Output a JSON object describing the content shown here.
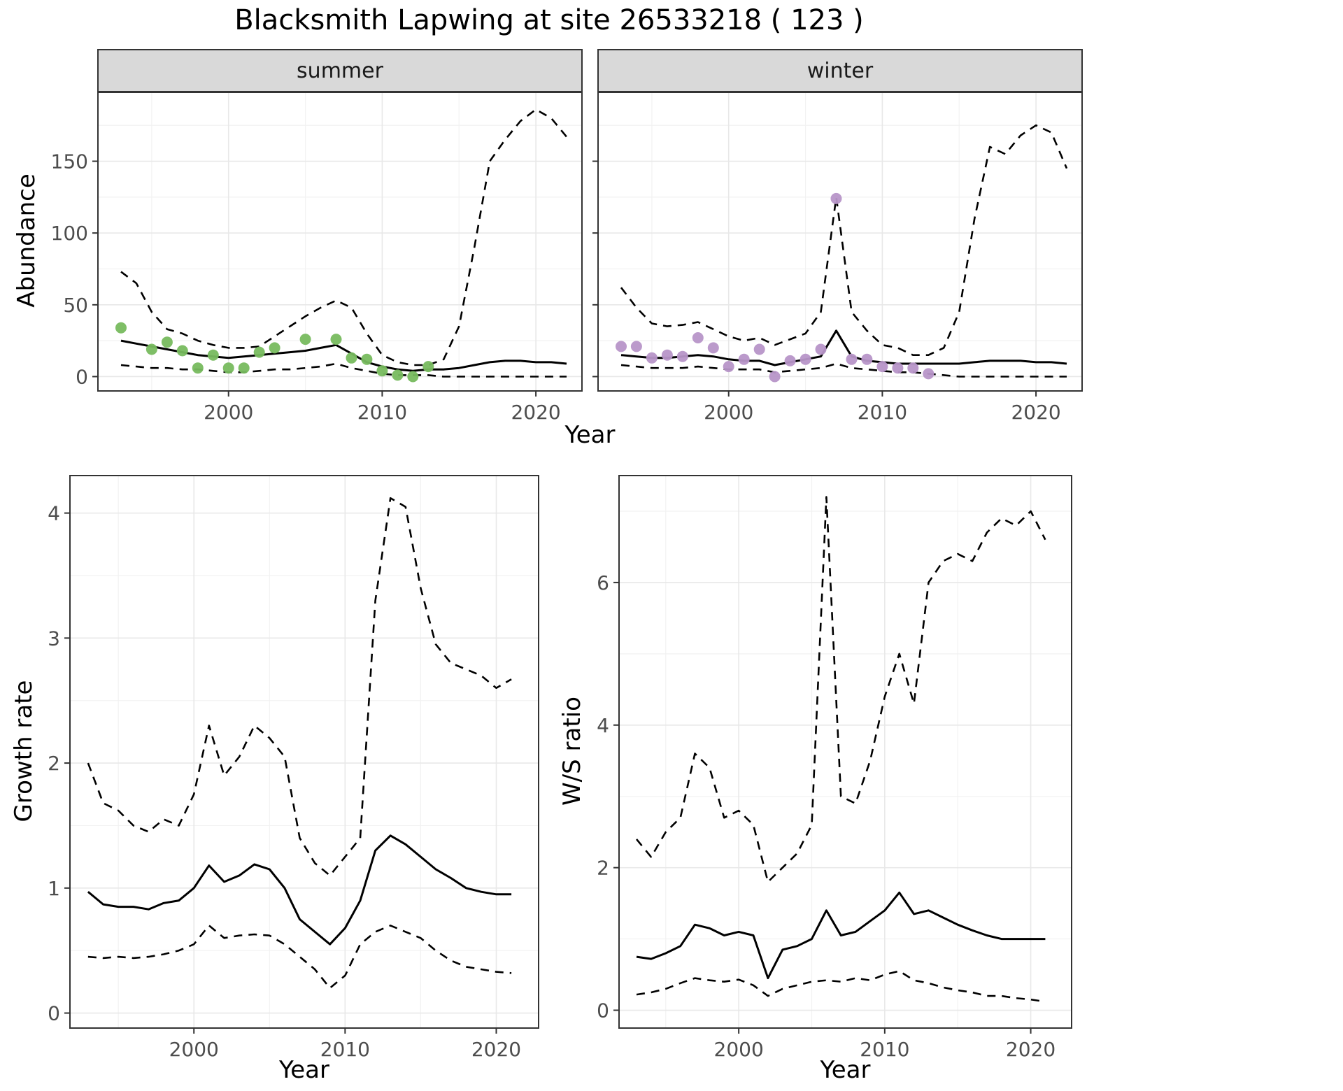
{
  "title": "Blacksmith Lapwing at site 26533218 ( 123 )",
  "labels": {
    "facet_summer": "summer",
    "facet_winter": "winter",
    "abundance_y": "Abundance",
    "top_x": "Year",
    "growth_y": "Growth rate",
    "growth_x": "Year",
    "ws_y": "W/S ratio",
    "ws_x": "Year"
  },
  "colors": {
    "summer_points": "#77bb5e",
    "winter_points": "#b795c8",
    "line": "#000000",
    "panel_bg": "#ffffff",
    "panel_border": "#333333",
    "strip_bg": "#d9d9d9",
    "grid_major": "#e8e8e8",
    "grid_minor": "#f2f2f2",
    "axis_text": "#4d4d4d"
  },
  "chart_data": [
    {
      "id": "abundance-summer",
      "type": "line",
      "facet_label": "summer",
      "xlabel": "Year",
      "ylabel": "Abundance",
      "xlim": [
        1991.5,
        2023
      ],
      "ylim": [
        -10,
        198
      ],
      "xticks": [
        2000,
        2010,
        2020
      ],
      "yticks": [
        0,
        50,
        100,
        150
      ],
      "x": [
        1993,
        1994,
        1995,
        1996,
        1997,
        1998,
        1999,
        2000,
        2001,
        2002,
        2003,
        2004,
        2005,
        2006,
        2007,
        2008,
        2009,
        2010,
        2011,
        2012,
        2013,
        2014,
        2015,
        2016,
        2017,
        2018,
        2019,
        2020,
        2021,
        2022
      ],
      "series": [
        {
          "name": "median",
          "style": "solid",
          "values": [
            25,
            23,
            21,
            19,
            17,
            15,
            14,
            13,
            14,
            15,
            16,
            17,
            18,
            20,
            22,
            16,
            10,
            7,
            5,
            4,
            5,
            5,
            6,
            8,
            10,
            11,
            11,
            10,
            10,
            9
          ]
        },
        {
          "name": "upper-ci",
          "style": "dashed",
          "values": [
            73,
            65,
            45,
            33,
            30,
            25,
            22,
            20,
            20,
            21,
            28,
            35,
            42,
            48,
            53,
            48,
            30,
            15,
            10,
            8,
            8,
            12,
            35,
            90,
            150,
            165,
            178,
            186,
            180,
            167
          ]
        },
        {
          "name": "lower-ci",
          "style": "dashed",
          "values": [
            8,
            7,
            6,
            6,
            5,
            5,
            4,
            3,
            3,
            4,
            5,
            5,
            6,
            7,
            9,
            6,
            4,
            2,
            1,
            1,
            1,
            0,
            0,
            0,
            0,
            0,
            0,
            0,
            0,
            0
          ]
        },
        {
          "name": "observed",
          "style": "points",
          "color_key": "summer_points",
          "x": [
            1993,
            1995,
            1996,
            1997,
            1998,
            1999,
            2000,
            2001,
            2002,
            2003,
            2005,
            2007,
            2008,
            2009,
            2010,
            2011,
            2012,
            2013
          ],
          "values": [
            34,
            19,
            24,
            18,
            6,
            15,
            6,
            6,
            17,
            20,
            26,
            26,
            13,
            12,
            4,
            1,
            0,
            7
          ]
        }
      ]
    },
    {
      "id": "abundance-winter",
      "type": "line",
      "facet_label": "winter",
      "xlabel": "Year",
      "ylabel": "Abundance",
      "xlim": [
        1991.5,
        2023
      ],
      "ylim": [
        -10,
        198
      ],
      "xticks": [
        2000,
        2010,
        2020
      ],
      "yticks": [
        0,
        50,
        100,
        150
      ],
      "x": [
        1993,
        1994,
        1995,
        1996,
        1997,
        1998,
        1999,
        2000,
        2001,
        2002,
        2003,
        2004,
        2005,
        2006,
        2007,
        2008,
        2009,
        2010,
        2011,
        2012,
        2013,
        2014,
        2015,
        2016,
        2017,
        2018,
        2019,
        2020,
        2021,
        2022
      ],
      "series": [
        {
          "name": "median",
          "style": "solid",
          "values": [
            15,
            14,
            13,
            13,
            14,
            15,
            14,
            12,
            11,
            11,
            8,
            10,
            12,
            14,
            32,
            14,
            11,
            10,
            9,
            9,
            9,
            9,
            9,
            10,
            11,
            11,
            11,
            10,
            10,
            9
          ]
        },
        {
          "name": "upper-ci",
          "style": "dashed",
          "values": [
            62,
            48,
            37,
            35,
            36,
            38,
            33,
            28,
            25,
            27,
            22,
            26,
            30,
            45,
            125,
            45,
            32,
            22,
            20,
            15,
            15,
            20,
            45,
            110,
            160,
            155,
            168,
            175,
            170,
            145
          ]
        },
        {
          "name": "lower-ci",
          "style": "dashed",
          "values": [
            8,
            7,
            6,
            6,
            6,
            7,
            6,
            5,
            5,
            5,
            3,
            4,
            5,
            6,
            9,
            6,
            5,
            4,
            3,
            3,
            2,
            1,
            0,
            0,
            0,
            0,
            0,
            0,
            0,
            0
          ]
        },
        {
          "name": "observed",
          "style": "points",
          "color_key": "winter_points",
          "x": [
            1993,
            1994,
            1995,
            1996,
            1997,
            1998,
            1999,
            2000,
            2001,
            2002,
            2003,
            2004,
            2005,
            2006,
            2007,
            2008,
            2009,
            2010,
            2011,
            2012,
            2013
          ],
          "values": [
            21,
            21,
            13,
            15,
            14,
            27,
            20,
            7,
            12,
            19,
            0,
            11,
            12,
            19,
            124,
            12,
            12,
            7,
            6,
            6,
            2
          ]
        }
      ]
    },
    {
      "id": "growth-rate",
      "type": "line",
      "xlabel": "Year",
      "ylabel": "Growth rate",
      "xlim": [
        1991.8,
        2022.8
      ],
      "ylim": [
        -0.12,
        4.3
      ],
      "xticks": [
        2000,
        2010,
        2020
      ],
      "yticks": [
        0,
        1,
        2,
        3,
        4
      ],
      "x": [
        1993,
        1994,
        1995,
        1996,
        1997,
        1998,
        1999,
        2000,
        2001,
        2002,
        2003,
        2004,
        2005,
        2006,
        2007,
        2008,
        2009,
        2010,
        2011,
        2012,
        2013,
        2014,
        2015,
        2016,
        2017,
        2018,
        2019,
        2020,
        2021
      ],
      "series": [
        {
          "name": "median",
          "style": "solid",
          "values": [
            0.97,
            0.87,
            0.85,
            0.85,
            0.83,
            0.88,
            0.9,
            1.0,
            1.18,
            1.05,
            1.1,
            1.19,
            1.15,
            1.0,
            0.75,
            0.65,
            0.55,
            0.68,
            0.9,
            1.3,
            1.42,
            1.35,
            1.25,
            1.15,
            1.08,
            1.0,
            0.97,
            0.95,
            0.95
          ]
        },
        {
          "name": "upper-ci",
          "style": "dashed",
          "values": [
            2.0,
            1.68,
            1.62,
            1.5,
            1.45,
            1.55,
            1.5,
            1.75,
            2.3,
            1.9,
            2.05,
            2.3,
            2.2,
            2.05,
            1.4,
            1.2,
            1.1,
            1.25,
            1.4,
            3.3,
            4.12,
            4.05,
            3.4,
            2.95,
            2.8,
            2.75,
            2.7,
            2.6,
            2.67
          ]
        },
        {
          "name": "lower-ci",
          "style": "dashed",
          "values": [
            0.45,
            0.44,
            0.45,
            0.44,
            0.45,
            0.47,
            0.5,
            0.55,
            0.7,
            0.6,
            0.62,
            0.63,
            0.62,
            0.55,
            0.45,
            0.35,
            0.2,
            0.3,
            0.55,
            0.65,
            0.7,
            0.65,
            0.6,
            0.5,
            0.42,
            0.37,
            0.35,
            0.33,
            0.32
          ]
        }
      ]
    },
    {
      "id": "ws-ratio",
      "type": "line",
      "xlabel": "Year",
      "ylabel": "W/S ratio",
      "xlim": [
        1991.8,
        2022.8
      ],
      "ylim": [
        -0.25,
        7.5
      ],
      "xticks": [
        2000,
        2010,
        2020
      ],
      "yticks": [
        0,
        2,
        4,
        6
      ],
      "x": [
        1993,
        1994,
        1995,
        1996,
        1997,
        1998,
        1999,
        2000,
        2001,
        2002,
        2003,
        2004,
        2005,
        2006,
        2007,
        2008,
        2009,
        2010,
        2011,
        2012,
        2013,
        2014,
        2015,
        2016,
        2017,
        2018,
        2019,
        2020,
        2021
      ],
      "series": [
        {
          "name": "median",
          "style": "solid",
          "values": [
            0.75,
            0.72,
            0.8,
            0.9,
            1.2,
            1.15,
            1.05,
            1.1,
            1.05,
            0.45,
            0.85,
            0.9,
            1.0,
            1.4,
            1.05,
            1.1,
            1.25,
            1.4,
            1.65,
            1.35,
            1.4,
            1.3,
            1.2,
            1.12,
            1.05,
            1.0,
            1.0,
            1.0,
            1.0
          ]
        },
        {
          "name": "upper-ci",
          "style": "dashed",
          "values": [
            2.4,
            2.15,
            2.5,
            2.7,
            3.6,
            3.4,
            2.7,
            2.8,
            2.6,
            1.8,
            2.0,
            2.2,
            2.6,
            7.2,
            3.0,
            2.9,
            3.5,
            4.4,
            5.0,
            4.3,
            6.0,
            6.3,
            6.4,
            6.3,
            6.7,
            6.9,
            6.8,
            7.0,
            6.6
          ]
        },
        {
          "name": "lower-ci",
          "style": "dashed",
          "values": [
            0.22,
            0.25,
            0.3,
            0.38,
            0.45,
            0.42,
            0.4,
            0.43,
            0.35,
            0.2,
            0.3,
            0.35,
            0.4,
            0.42,
            0.4,
            0.45,
            0.42,
            0.5,
            0.55,
            0.42,
            0.38,
            0.32,
            0.28,
            0.25,
            0.2,
            0.2,
            0.17,
            0.15,
            0.12
          ]
        }
      ]
    }
  ]
}
